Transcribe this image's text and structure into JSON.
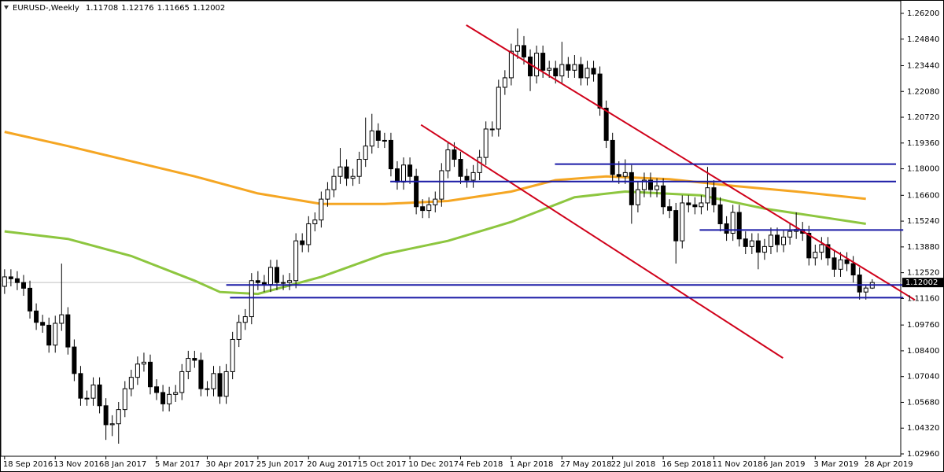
{
  "chart_data": {
    "type": "candlestick",
    "title": "EURUSD-,Weekly",
    "candles": [
      [
        1.118,
        1.127,
        1.114,
        1.123
      ],
      [
        1.123,
        1.127,
        1.118,
        1.122
      ],
      [
        1.122,
        1.126,
        1.116,
        1.12
      ],
      [
        1.12,
        1.124,
        1.113,
        1.117
      ],
      [
        1.117,
        1.121,
        1.101,
        1.105
      ],
      [
        1.105,
        1.109,
        1.095,
        1.099
      ],
      [
        1.099,
        1.103,
        1.0935,
        1.0975
      ],
      [
        1.0975,
        1.1015,
        1.083,
        1.087
      ],
      [
        1.087,
        1.1025,
        1.083,
        1.0985
      ],
      [
        1.0985,
        1.13,
        1.0945,
        1.103
      ],
      [
        1.103,
        1.107,
        1.082,
        1.086
      ],
      [
        1.086,
        1.09,
        1.068,
        1.072
      ],
      [
        1.072,
        1.076,
        1.055,
        1.059
      ],
      [
        1.059,
        1.063,
        1.055,
        1.059
      ],
      [
        1.059,
        1.07,
        1.055,
        1.066
      ],
      [
        1.066,
        1.07,
        1.051,
        1.055
      ],
      [
        1.055,
        1.059,
        1.037,
        1.045
      ],
      [
        1.045,
        1.05,
        1.039,
        1.0455
      ],
      [
        1.0455,
        1.057,
        1.035,
        1.053
      ],
      [
        1.053,
        1.068,
        1.049,
        1.064
      ],
      [
        1.064,
        1.074,
        1.06,
        1.07
      ],
      [
        1.07,
        1.081,
        1.066,
        1.077
      ],
      [
        1.077,
        1.083,
        1.073,
        1.078
      ],
      [
        1.078,
        1.082,
        1.061,
        1.065
      ],
      [
        1.065,
        1.069,
        1.058,
        1.062
      ],
      [
        1.062,
        1.066,
        1.052,
        1.056
      ],
      [
        1.056,
        1.065,
        1.052,
        1.061
      ],
      [
        1.061,
        1.066,
        1.057,
        1.062
      ],
      [
        1.062,
        1.077,
        1.058,
        1.073
      ],
      [
        1.073,
        1.084,
        1.069,
        1.08
      ],
      [
        1.08,
        1.084,
        1.075,
        1.079
      ],
      [
        1.079,
        1.083,
        1.06,
        1.064
      ],
      [
        1.064,
        1.068,
        1.06,
        1.064
      ],
      [
        1.064,
        1.076,
        1.06,
        1.072
      ],
      [
        1.072,
        1.076,
        1.056,
        1.06
      ],
      [
        1.06,
        1.077,
        1.056,
        1.073
      ],
      [
        1.073,
        1.094,
        1.069,
        1.09
      ],
      [
        1.09,
        1.103,
        1.086,
        1.099
      ],
      [
        1.099,
        1.106,
        1.095,
        1.102
      ],
      [
        1.102,
        1.125,
        1.098,
        1.121
      ],
      [
        1.121,
        1.126,
        1.116,
        1.12
      ],
      [
        1.12,
        1.124,
        1.115,
        1.119
      ],
      [
        1.119,
        1.132,
        1.115,
        1.128
      ],
      [
        1.128,
        1.132,
        1.116,
        1.12
      ],
      [
        1.12,
        1.124,
        1.116,
        1.12
      ],
      [
        1.12,
        1.125,
        1.116,
        1.121
      ],
      [
        1.121,
        1.146,
        1.117,
        1.142
      ],
      [
        1.142,
        1.146,
        1.136,
        1.14
      ],
      [
        1.14,
        1.155,
        1.136,
        1.151
      ],
      [
        1.151,
        1.157,
        1.147,
        1.153
      ],
      [
        1.153,
        1.168,
        1.149,
        1.164
      ],
      [
        1.164,
        1.173,
        1.16,
        1.169
      ],
      [
        1.169,
        1.18,
        1.165,
        1.176
      ],
      [
        1.176,
        1.191,
        1.172,
        1.181
      ],
      [
        1.181,
        1.185,
        1.171,
        1.175
      ],
      [
        1.175,
        1.18,
        1.171,
        1.176
      ],
      [
        1.176,
        1.189,
        1.172,
        1.185
      ],
      [
        1.185,
        1.207,
        1.181,
        1.192
      ],
      [
        1.192,
        1.209,
        1.188,
        1.2
      ],
      [
        1.2,
        1.204,
        1.191,
        1.195
      ],
      [
        1.195,
        1.199,
        1.191,
        1.195
      ],
      [
        1.195,
        1.199,
        1.176,
        1.18
      ],
      [
        1.18,
        1.184,
        1.169,
        1.173
      ],
      [
        1.173,
        1.186,
        1.169,
        1.182
      ],
      [
        1.182,
        1.186,
        1.172,
        1.176
      ],
      [
        1.176,
        1.18,
        1.156,
        1.16
      ],
      [
        1.16,
        1.164,
        1.154,
        1.158
      ],
      [
        1.158,
        1.165,
        1.154,
        1.161
      ],
      [
        1.161,
        1.168,
        1.157,
        1.164
      ],
      [
        1.164,
        1.183,
        1.16,
        1.179
      ],
      [
        1.179,
        1.194,
        1.175,
        1.19
      ],
      [
        1.19,
        1.194,
        1.181,
        1.185
      ],
      [
        1.185,
        1.189,
        1.172,
        1.176
      ],
      [
        1.176,
        1.18,
        1.17,
        1.174
      ],
      [
        1.174,
        1.182,
        1.17,
        1.178
      ],
      [
        1.178,
        1.19,
        1.174,
        1.186
      ],
      [
        1.186,
        1.205,
        1.182,
        1.201
      ],
      [
        1.201,
        1.205,
        1.197,
        1.201
      ],
      [
        1.201,
        1.227,
        1.197,
        1.223
      ],
      [
        1.223,
        1.232,
        1.219,
        1.228
      ],
      [
        1.228,
        1.246,
        1.224,
        1.242
      ],
      [
        1.242,
        1.254,
        1.238,
        1.245
      ],
      [
        1.245,
        1.25,
        1.235,
        1.239
      ],
      [
        1.239,
        1.243,
        1.221,
        1.229
      ],
      [
        1.229,
        1.245,
        1.225,
        1.241
      ],
      [
        1.241,
        1.245,
        1.228,
        1.232
      ],
      [
        1.232,
        1.237,
        1.228,
        1.233
      ],
      [
        1.233,
        1.237,
        1.225,
        1.229
      ],
      [
        1.229,
        1.247,
        1.225,
        1.235
      ],
      [
        1.235,
        1.239,
        1.228,
        1.232
      ],
      [
        1.232,
        1.24,
        1.228,
        1.235
      ],
      [
        1.235,
        1.239,
        1.224,
        1.228
      ],
      [
        1.228,
        1.237,
        1.224,
        1.233
      ],
      [
        1.233,
        1.237,
        1.226,
        1.23
      ],
      [
        1.23,
        1.234,
        1.208,
        1.212
      ],
      [
        1.212,
        1.216,
        1.191,
        1.195
      ],
      [
        1.195,
        1.199,
        1.173,
        1.177
      ],
      [
        1.177,
        1.184,
        1.172,
        1.176
      ],
      [
        1.176,
        1.185,
        1.172,
        1.178
      ],
      [
        1.178,
        1.182,
        1.151,
        1.161
      ],
      [
        1.161,
        1.173,
        1.157,
        1.169
      ],
      [
        1.169,
        1.178,
        1.165,
        1.174
      ],
      [
        1.174,
        1.178,
        1.165,
        1.169
      ],
      [
        1.169,
        1.175,
        1.165,
        1.171
      ],
      [
        1.171,
        1.175,
        1.156,
        1.16
      ],
      [
        1.16,
        1.164,
        1.154,
        1.158
      ],
      [
        1.158,
        1.162,
        1.13,
        1.142
      ],
      [
        1.142,
        1.166,
        1.138,
        1.162
      ],
      [
        1.162,
        1.166,
        1.157,
        1.161
      ],
      [
        1.161,
        1.165,
        1.156,
        1.16
      ],
      [
        1.16,
        1.166,
        1.156,
        1.162
      ],
      [
        1.162,
        1.181,
        1.158,
        1.17
      ],
      [
        1.17,
        1.174,
        1.157,
        1.161
      ],
      [
        1.161,
        1.165,
        1.147,
        1.151
      ],
      [
        1.151,
        1.155,
        1.142,
        1.146
      ],
      [
        1.146,
        1.161,
        1.142,
        1.157
      ],
      [
        1.157,
        1.161,
        1.139,
        1.143
      ],
      [
        1.143,
        1.147,
        1.135,
        1.139
      ],
      [
        1.139,
        1.146,
        1.135,
        1.142
      ],
      [
        1.142,
        1.146,
        1.127,
        1.136
      ],
      [
        1.136,
        1.143,
        1.132,
        1.139
      ],
      [
        1.139,
        1.149,
        1.135,
        1.145
      ],
      [
        1.145,
        1.149,
        1.136,
        1.14
      ],
      [
        1.14,
        1.148,
        1.136,
        1.144
      ],
      [
        1.144,
        1.151,
        1.14,
        1.147
      ],
      [
        1.147,
        1.157,
        1.143,
        1.148
      ],
      [
        1.148,
        1.152,
        1.142,
        1.146
      ],
      [
        1.146,
        1.15,
        1.129,
        1.133
      ],
      [
        1.133,
        1.14,
        1.129,
        1.136
      ],
      [
        1.136,
        1.144,
        1.132,
        1.14
      ],
      [
        1.14,
        1.144,
        1.129,
        1.133
      ],
      [
        1.133,
        1.137,
        1.123,
        1.127
      ],
      [
        1.127,
        1.136,
        1.123,
        1.132
      ],
      [
        1.132,
        1.136,
        1.126,
        1.13
      ],
      [
        1.13,
        1.134,
        1.12,
        1.124
      ],
      [
        1.124,
        1.128,
        1.111,
        1.115
      ],
      [
        1.115,
        1.119,
        1.111,
        1.1171
      ],
      [
        1.11708,
        1.12176,
        1.11665,
        1.12002
      ]
    ],
    "bull_color": "#ffffff",
    "bear_color": "#000000",
    "outline_color": "#000000",
    "series": [
      {
        "color": "#f5a623",
        "x": [
          0,
          10,
          20,
          30,
          40,
          50,
          60,
          70,
          80,
          87,
          95,
          105,
          115,
          125,
          136
        ],
        "values": [
          1.1995,
          1.192,
          1.184,
          1.176,
          1.167,
          1.1615,
          1.1615,
          1.163,
          1.168,
          1.174,
          1.176,
          1.1745,
          1.171,
          1.168,
          1.1642
        ]
      },
      {
        "color": "#8dc63f",
        "x": [
          0,
          10,
          20,
          30,
          34,
          40,
          50,
          60,
          70,
          80,
          90,
          98,
          110,
          120,
          130,
          136
        ],
        "values": [
          1.147,
          1.143,
          1.134,
          1.121,
          1.115,
          1.114,
          1.123,
          1.135,
          1.142,
          1.152,
          1.165,
          1.168,
          1.166,
          1.159,
          1.154,
          1.151
        ]
      }
    ],
    "trendlines": [
      {
        "color": "#d0021b",
        "x": [
          72.9,
          143.75
        ],
        "values": [
          1.2558,
          1.1108
        ]
      },
      {
        "color": "#d0021b",
        "x": [
          65.75,
          122.9
        ],
        "values": [
          1.2032,
          1.0802
        ]
      },
      {
        "color": "#1a1aa6",
        "x": [
          86.9,
          140.75
        ],
        "values": [
          1.1825,
          1.1825
        ]
      },
      {
        "color": "#1a1aa6",
        "x": [
          60.9,
          140.75
        ],
        "values": [
          1.1733,
          1.1733
        ]
      },
      {
        "color": "#1a1aa6",
        "x": [
          109.75,
          141.9
        ],
        "values": [
          1.1477,
          1.1477
        ]
      },
      {
        "color": "#1a1aa6",
        "x": [
          35,
          141.9
        ],
        "values": [
          1.1187,
          1.1187
        ]
      },
      {
        "color": "#1a1aa6",
        "x": [
          35.6,
          141.9
        ],
        "values": [
          1.112,
          1.112
        ]
      }
    ],
    "xlim": [
      -0.6,
      141.5
    ],
    "ylim": [
      1.02836,
      1.26863
    ],
    "xticks": [
      {
        "value": 0,
        "label": "18 Sep 2016"
      },
      {
        "value": 8,
        "label": "13 Nov 2016"
      },
      {
        "value": 16,
        "label": "8 Jan 2017"
      },
      {
        "value": 24,
        "label": "5 Mar 2017"
      },
      {
        "value": 32,
        "label": "30 Apr 2017"
      },
      {
        "value": 40,
        "label": "25 Jun 2017"
      },
      {
        "value": 48,
        "label": "20 Aug 2017"
      },
      {
        "value": 56,
        "label": "15 Oct 2017"
      },
      {
        "value": 64,
        "label": "10 Dec 2017"
      },
      {
        "value": 72,
        "label": "4 Feb 2018"
      },
      {
        "value": 80,
        "label": "1 Apr 2018"
      },
      {
        "value": 88,
        "label": "27 May 2018"
      },
      {
        "value": 96,
        "label": "22 Jul 2018"
      },
      {
        "value": 104,
        "label": "16 Sep 2018"
      },
      {
        "value": 112,
        "label": "11 Nov 2018"
      },
      {
        "value": 120,
        "label": "6 Jan 2019"
      },
      {
        "value": 128,
        "label": "3 Mar 2019"
      },
      {
        "value": 136,
        "label": "28 Apr 2019"
      }
    ],
    "yticks": [
      {
        "value": 1.262,
        "label": "1.26200"
      },
      {
        "value": 1.2484,
        "label": "1.24840"
      },
      {
        "value": 1.2344,
        "label": "1.23440"
      },
      {
        "value": 1.2208,
        "label": "1.22080"
      },
      {
        "value": 1.2072,
        "label": "1.20720"
      },
      {
        "value": 1.1936,
        "label": "1.19360"
      },
      {
        "value": 1.18,
        "label": "1.18000"
      },
      {
        "value": 1.166,
        "label": "1.16600"
      },
      {
        "value": 1.1524,
        "label": "1.15240"
      },
      {
        "value": 1.1388,
        "label": "1.13880"
      },
      {
        "value": 1.1252,
        "label": "1.12520"
      },
      {
        "value": 1.1116,
        "label": "1.11160"
      },
      {
        "value": 1.0976,
        "label": "1.09760"
      },
      {
        "value": 1.084,
        "label": "1.08400"
      },
      {
        "value": 1.0704,
        "label": "1.07040"
      },
      {
        "value": 1.0568,
        "label": "1.05680"
      },
      {
        "value": 1.0432,
        "label": "1.04320"
      },
      {
        "value": 1.0296,
        "label": "1.02960"
      }
    ],
    "grid": false
  }
}
